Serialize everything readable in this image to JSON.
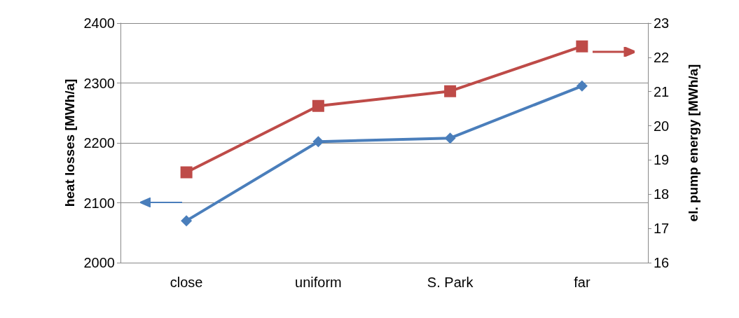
{
  "chart_data": {
    "type": "line",
    "categories": [
      "close",
      "uniform",
      "S. Park",
      "far"
    ],
    "ylabel": "heat losses [MWh/a]",
    "y2label": "el. pump energy [MWh/a]",
    "series": [
      {
        "color": "#4a7ebb",
        "values": [
          2070,
          2202,
          2208,
          2295
        ],
        "marker": "diamond"
      },
      {
        "color": "#be4b48",
        "values": [
          18.64,
          20.58,
          21.01,
          22.32
        ],
        "marker": "square",
        "axis": "y2"
      }
    ],
    "ylim": [
      2000,
      2400
    ],
    "yticks": [
      2000,
      2100,
      2200,
      2300,
      2400
    ],
    "y2lim": [
      16,
      23
    ],
    "y2ticks": [
      16,
      17,
      18,
      19,
      20,
      21,
      22,
      23
    ],
    "grid": "y",
    "line_style": "solid"
  }
}
